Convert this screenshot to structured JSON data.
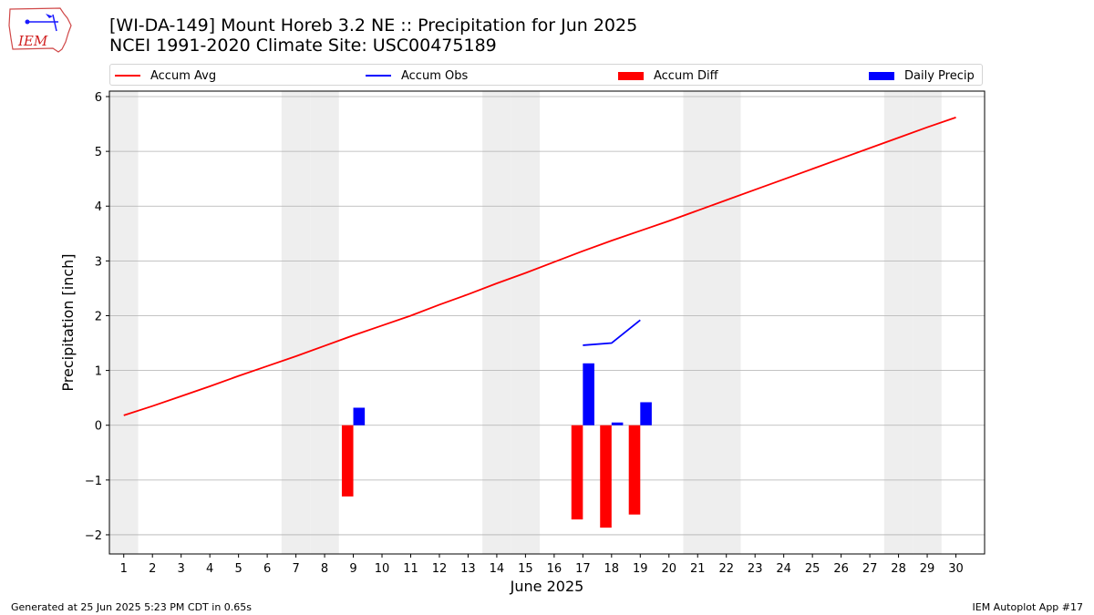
{
  "header": {
    "title_line1": "[WI-DA-149] Mount Horeb 3.2 NE :: Precipitation for Jun 2025",
    "title_line2": "NCEI 1991-2020 Climate Site: USC00475189",
    "logo_text": "IEM"
  },
  "footer": {
    "generated": "Generated at 25 Jun 2025 5:23 PM CDT in 0.65s",
    "app": "IEM Autoplot App #17"
  },
  "colors": {
    "accum_avg": "#ff0000",
    "accum_obs": "#0000ff",
    "accum_diff": "#ff0000",
    "daily_precip": "#0000ff",
    "weekend_shade": "#eeeeee",
    "grid": "#b0b0b0"
  },
  "chart_data": {
    "type": "bar",
    "title": "[WI-DA-149] Mount Horeb 3.2 NE :: Precipitation for Jun 2025",
    "subtitle": "NCEI 1991-2020 Climate Site: USC00475189",
    "xlabel": "June 2025",
    "ylabel": "Precipitation [inch]",
    "xlim": [
      0.5,
      31
    ],
    "ylim": [
      -2.35,
      6.1
    ],
    "x_ticks": [
      1,
      2,
      3,
      4,
      5,
      6,
      7,
      8,
      9,
      10,
      11,
      12,
      13,
      14,
      15,
      16,
      17,
      18,
      19,
      20,
      21,
      22,
      23,
      24,
      25,
      26,
      27,
      28,
      29,
      30
    ],
    "y_ticks": [
      -2,
      -1,
      0,
      1,
      2,
      3,
      4,
      5,
      6
    ],
    "y_tick_labels": [
      "−2",
      "−1",
      "0",
      "1",
      "2",
      "3",
      "4",
      "5",
      "6"
    ],
    "grid": "horizontal",
    "legend": {
      "placement": "top",
      "entries": [
        "Accum Avg",
        "Accum Obs",
        "Accum Diff",
        "Daily Precip"
      ]
    },
    "weekend_shaded_days": [
      1,
      7,
      8,
      14,
      15,
      21,
      22,
      28,
      29
    ],
    "series": [
      {
        "name": "Accum Avg",
        "kind": "line",
        "x": [
          1,
          2,
          3,
          4,
          5,
          6,
          7,
          8,
          9,
          10,
          11,
          12,
          13,
          14,
          15,
          16,
          17,
          18,
          19,
          20,
          21,
          22,
          23,
          24,
          25,
          26,
          27,
          28,
          29,
          30
        ],
        "values": [
          0.18,
          0.35,
          0.53,
          0.71,
          0.9,
          1.08,
          1.26,
          1.45,
          1.64,
          1.82,
          2.0,
          2.2,
          2.39,
          2.59,
          2.78,
          2.98,
          3.18,
          3.37,
          3.55,
          3.73,
          3.92,
          4.11,
          4.3,
          4.49,
          4.68,
          4.87,
          5.06,
          5.25,
          5.44,
          5.62
        ]
      },
      {
        "name": "Accum Obs",
        "kind": "line",
        "x": [
          17,
          18,
          19
        ],
        "values": [
          1.46,
          1.5,
          1.92
        ]
      },
      {
        "name": "Accum Diff",
        "kind": "bar",
        "x": [
          9,
          17,
          18,
          19
        ],
        "values": [
          -1.3,
          -1.72,
          -1.87,
          -1.63
        ]
      },
      {
        "name": "Daily Precip",
        "kind": "bar",
        "x": [
          9,
          17,
          18,
          19
        ],
        "values": [
          0.32,
          1.13,
          0.05,
          0.42
        ]
      }
    ]
  }
}
